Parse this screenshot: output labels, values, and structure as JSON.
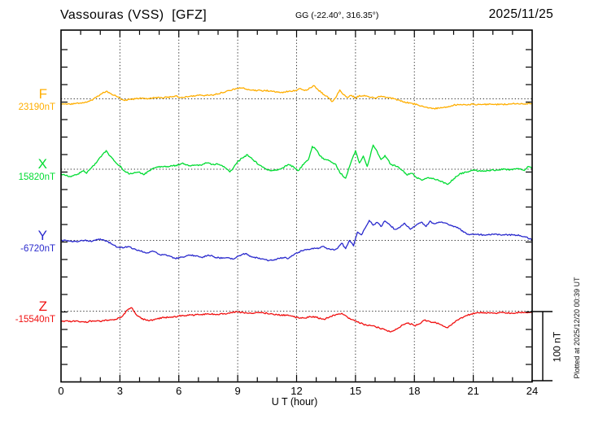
{
  "chart_data": {
    "type": "line",
    "title": "Vassouras (VSS)  [GFZ]",
    "subtitle": "GG (-22.40°, 316.35°)",
    "date": "2025/11/25",
    "xlabel": "U T (hour)",
    "xlim": [
      0,
      24
    ],
    "x_ticks": [
      0,
      3,
      6,
      9,
      12,
      15,
      18,
      21,
      24
    ],
    "x_minor_tick_hours": 1,
    "grid": "dotted vertical lines every 3 hours and a dotted horizontal baseline for each trace",
    "legend_position": "left margin (trace letter with baseline value)",
    "scale_bar_nT": 100,
    "scale_bar_label": "100 nT",
    "note": "Plotted at 2025/12/20 00:39 UT",
    "units": "nT",
    "series": [
      {
        "name": "F",
        "color": "#FFAE00",
        "baseline_nT": 23190,
        "baseline_label": "23190nT",
        "points": [
          [
            0,
            -8
          ],
          [
            0.3,
            -8
          ],
          [
            0.7,
            -7
          ],
          [
            1,
            -6
          ],
          [
            1.3,
            -5
          ],
          [
            1.6,
            -2
          ],
          [
            1.9,
            4
          ],
          [
            2.1,
            8
          ],
          [
            2.3,
            11
          ],
          [
            2.5,
            8
          ],
          [
            2.8,
            4
          ],
          [
            3,
            1
          ],
          [
            3.2,
            -2
          ],
          [
            3.5,
            -1
          ],
          [
            3.8,
            0
          ],
          [
            4,
            1
          ],
          [
            4.3,
            0
          ],
          [
            4.6,
            1
          ],
          [
            5,
            2
          ],
          [
            5.4,
            2
          ],
          [
            5.8,
            4
          ],
          [
            6.2,
            2
          ],
          [
            6.6,
            4
          ],
          [
            7,
            5
          ],
          [
            7.4,
            5
          ],
          [
            7.8,
            6
          ],
          [
            8.2,
            9
          ],
          [
            8.6,
            12
          ],
          [
            9,
            15
          ],
          [
            9.3,
            16
          ],
          [
            9.6,
            13
          ],
          [
            10,
            12
          ],
          [
            10.4,
            12
          ],
          [
            10.8,
            11
          ],
          [
            11.2,
            9
          ],
          [
            11.6,
            11
          ],
          [
            12,
            12
          ],
          [
            12.2,
            15
          ],
          [
            12.4,
            12
          ],
          [
            12.7,
            16
          ],
          [
            12.9,
            19
          ],
          [
            13.1,
            13
          ],
          [
            13.4,
            6
          ],
          [
            13.6,
            2
          ],
          [
            13.8,
            -4
          ],
          [
            14,
            2
          ],
          [
            14.2,
            13
          ],
          [
            14.4,
            6
          ],
          [
            14.6,
            2
          ],
          [
            14.8,
            5
          ],
          [
            15,
            1
          ],
          [
            15.2,
            5
          ],
          [
            15.5,
            4
          ],
          [
            15.8,
            2
          ],
          [
            16,
            1
          ],
          [
            16.3,
            4
          ],
          [
            16.6,
            2
          ],
          [
            17,
            0
          ],
          [
            17.4,
            -4
          ],
          [
            17.8,
            -6
          ],
          [
            18.2,
            -9
          ],
          [
            18.6,
            -12
          ],
          [
            19,
            -14
          ],
          [
            19.4,
            -13
          ],
          [
            19.7,
            -12
          ],
          [
            20,
            -9
          ],
          [
            20.5,
            -8
          ],
          [
            21,
            -8
          ],
          [
            21.5,
            -8
          ],
          [
            22,
            -8
          ],
          [
            22.5,
            -8
          ],
          [
            23,
            -7
          ],
          [
            23.5,
            -7
          ],
          [
            24,
            -7
          ]
        ]
      },
      {
        "name": "X",
        "color": "#00DC32",
        "baseline_nT": 15820,
        "baseline_label": "15820nT",
        "points": [
          [
            0,
            -7
          ],
          [
            0.25,
            -9
          ],
          [
            0.5,
            -11
          ],
          [
            0.75,
            -8
          ],
          [
            1,
            -5
          ],
          [
            1.15,
            -2
          ],
          [
            1.3,
            -6
          ],
          [
            1.5,
            1
          ],
          [
            1.8,
            9
          ],
          [
            2.1,
            21
          ],
          [
            2.3,
            27
          ],
          [
            2.5,
            19
          ],
          [
            2.8,
            9
          ],
          [
            3,
            5
          ],
          [
            3.2,
            -2
          ],
          [
            3.5,
            -7
          ],
          [
            3.8,
            -5
          ],
          [
            4,
            -4
          ],
          [
            4.2,
            -8
          ],
          [
            4.5,
            -2
          ],
          [
            4.8,
            2
          ],
          [
            5.1,
            4
          ],
          [
            5.4,
            4
          ],
          [
            5.7,
            5
          ],
          [
            6,
            6
          ],
          [
            6.2,
            9
          ],
          [
            6.5,
            5
          ],
          [
            6.8,
            6
          ],
          [
            7.1,
            6
          ],
          [
            7.4,
            9
          ],
          [
            7.7,
            7
          ],
          [
            8,
            7
          ],
          [
            8.3,
            4
          ],
          [
            8.6,
            -4
          ],
          [
            8.9,
            7
          ],
          [
            9.2,
            16
          ],
          [
            9.5,
            21
          ],
          [
            9.8,
            13
          ],
          [
            10.1,
            6
          ],
          [
            10.4,
            1
          ],
          [
            10.7,
            -2
          ],
          [
            11,
            -1
          ],
          [
            11.3,
            2
          ],
          [
            11.6,
            7
          ],
          [
            11.9,
            2
          ],
          [
            12.1,
            -2
          ],
          [
            12.4,
            9
          ],
          [
            12.6,
            14
          ],
          [
            12.8,
            33
          ],
          [
            13,
            28
          ],
          [
            13.2,
            19
          ],
          [
            13.4,
            14
          ],
          [
            13.7,
            12
          ],
          [
            14,
            7
          ],
          [
            14.2,
            -5
          ],
          [
            14.5,
            -13
          ],
          [
            14.7,
            4
          ],
          [
            15,
            27
          ],
          [
            15.2,
            9
          ],
          [
            15.4,
            19
          ],
          [
            15.6,
            4
          ],
          [
            15.9,
            35
          ],
          [
            16.1,
            26
          ],
          [
            16.3,
            14
          ],
          [
            16.5,
            20
          ],
          [
            16.8,
            7
          ],
          [
            17.1,
            4
          ],
          [
            17.4,
            -2
          ],
          [
            17.6,
            -8
          ],
          [
            17.9,
            -6
          ],
          [
            18.1,
            -12
          ],
          [
            18.4,
            -16
          ],
          [
            18.7,
            -12
          ],
          [
            19,
            -14
          ],
          [
            19.3,
            -17
          ],
          [
            19.7,
            -22
          ],
          [
            20,
            -14
          ],
          [
            20.3,
            -7
          ],
          [
            20.7,
            -4
          ],
          [
            21,
            -1
          ],
          [
            21.4,
            -3
          ],
          [
            21.8,
            -2
          ],
          [
            22.2,
            -1
          ],
          [
            22.6,
            0
          ],
          [
            23,
            -1
          ],
          [
            23.3,
            1
          ],
          [
            23.6,
            -2
          ],
          [
            23.8,
            4
          ],
          [
            24,
            2
          ]
        ]
      },
      {
        "name": "Y",
        "color": "#2A2ACD",
        "baseline_nT": -6720,
        "baseline_label": "-6720nT",
        "points": [
          [
            0,
            0
          ],
          [
            0.4,
            -1
          ],
          [
            0.8,
            -2
          ],
          [
            1.2,
            0
          ],
          [
            1.6,
            -1
          ],
          [
            1.9,
            2
          ],
          [
            2.1,
            1
          ],
          [
            2.4,
            -2
          ],
          [
            2.7,
            -7
          ],
          [
            3,
            -11
          ],
          [
            3.4,
            -9
          ],
          [
            3.7,
            -12
          ],
          [
            4,
            -15
          ],
          [
            4.4,
            -18
          ],
          [
            4.7,
            -16
          ],
          [
            5,
            -20
          ],
          [
            5.4,
            -22
          ],
          [
            5.8,
            -26
          ],
          [
            6.2,
            -24
          ],
          [
            6.5,
            -21
          ],
          [
            6.8,
            -22
          ],
          [
            7.2,
            -25
          ],
          [
            7.5,
            -21
          ],
          [
            7.8,
            -24
          ],
          [
            8.2,
            -26
          ],
          [
            8.5,
            -25
          ],
          [
            8.8,
            -27
          ],
          [
            9.1,
            -22
          ],
          [
            9.4,
            -19
          ],
          [
            9.7,
            -24
          ],
          [
            10,
            -25
          ],
          [
            10.3,
            -27
          ],
          [
            10.6,
            -29
          ],
          [
            11,
            -27
          ],
          [
            11.3,
            -25
          ],
          [
            11.6,
            -26
          ],
          [
            12,
            -18
          ],
          [
            12.3,
            -15
          ],
          [
            12.6,
            -13
          ],
          [
            12.9,
            -11
          ],
          [
            13.1,
            -12
          ],
          [
            13.3,
            -9
          ],
          [
            13.6,
            -12
          ],
          [
            13.9,
            -14
          ],
          [
            14.1,
            -11
          ],
          [
            14.3,
            -4
          ],
          [
            14.5,
            -12
          ],
          [
            14.7,
            0
          ],
          [
            14.9,
            -8
          ],
          [
            15.1,
            12
          ],
          [
            15.3,
            8
          ],
          [
            15.5,
            18
          ],
          [
            15.7,
            29
          ],
          [
            15.9,
            22
          ],
          [
            16.1,
            26
          ],
          [
            16.3,
            20
          ],
          [
            16.5,
            28
          ],
          [
            16.7,
            24
          ],
          [
            17,
            16
          ],
          [
            17.3,
            20
          ],
          [
            17.5,
            25
          ],
          [
            17.8,
            16
          ],
          [
            18,
            20
          ],
          [
            18.2,
            24
          ],
          [
            18.4,
            26
          ],
          [
            18.6,
            20
          ],
          [
            18.8,
            28
          ],
          [
            19,
            24
          ],
          [
            19.3,
            26
          ],
          [
            19.6,
            25
          ],
          [
            19.9,
            21
          ],
          [
            20.2,
            19
          ],
          [
            20.5,
            12
          ],
          [
            20.8,
            8
          ],
          [
            21.1,
            9
          ],
          [
            21.5,
            8
          ],
          [
            22,
            9
          ],
          [
            22.5,
            8
          ],
          [
            23,
            8
          ],
          [
            23.4,
            7
          ],
          [
            23.7,
            5
          ],
          [
            24,
            0
          ]
        ]
      },
      {
        "name": "Z",
        "color": "#F01010",
        "baseline_nT": -15540,
        "baseline_label": "-15540nT",
        "points": [
          [
            0,
            -14
          ],
          [
            0.4,
            -15
          ],
          [
            0.8,
            -14
          ],
          [
            1.2,
            -16
          ],
          [
            1.6,
            -14
          ],
          [
            2,
            -15
          ],
          [
            2.4,
            -13
          ],
          [
            2.8,
            -12
          ],
          [
            3.1,
            -8
          ],
          [
            3.4,
            2
          ],
          [
            3.6,
            5
          ],
          [
            3.8,
            -4
          ],
          [
            4.1,
            -11
          ],
          [
            4.5,
            -14
          ],
          [
            4.9,
            -11
          ],
          [
            5.3,
            -9
          ],
          [
            5.7,
            -9
          ],
          [
            6,
            -7
          ],
          [
            6.5,
            -6
          ],
          [
            7,
            -5
          ],
          [
            7.5,
            -4
          ],
          [
            8,
            -5
          ],
          [
            8.5,
            -3
          ],
          [
            9,
            -1
          ],
          [
            9.5,
            -3
          ],
          [
            10,
            -2
          ],
          [
            10.5,
            -3
          ],
          [
            11,
            -5
          ],
          [
            11.5,
            -6
          ],
          [
            12,
            -9
          ],
          [
            12.4,
            -10
          ],
          [
            12.7,
            -8
          ],
          [
            13,
            -9
          ],
          [
            13.4,
            -12
          ],
          [
            13.7,
            -8
          ],
          [
            14,
            -5
          ],
          [
            14.3,
            -3
          ],
          [
            14.6,
            -9
          ],
          [
            15,
            -14
          ],
          [
            15.4,
            -19
          ],
          [
            15.8,
            -21
          ],
          [
            16.2,
            -24
          ],
          [
            16.5,
            -27
          ],
          [
            16.8,
            -30
          ],
          [
            17.1,
            -26
          ],
          [
            17.4,
            -20
          ],
          [
            17.7,
            -17
          ],
          [
            18,
            -21
          ],
          [
            18.2,
            -19
          ],
          [
            18.5,
            -13
          ],
          [
            18.8,
            -15
          ],
          [
            19.1,
            -17
          ],
          [
            19.4,
            -20
          ],
          [
            19.7,
            -24
          ],
          [
            20,
            -17
          ],
          [
            20.3,
            -11
          ],
          [
            20.6,
            -7
          ],
          [
            20.9,
            -4
          ],
          [
            21.2,
            -2
          ],
          [
            21.6,
            -2
          ],
          [
            22,
            -3
          ],
          [
            22.5,
            -2
          ],
          [
            23,
            -3
          ],
          [
            23.4,
            -2
          ],
          [
            23.7,
            -2
          ],
          [
            24,
            -2
          ]
        ]
      }
    ]
  }
}
